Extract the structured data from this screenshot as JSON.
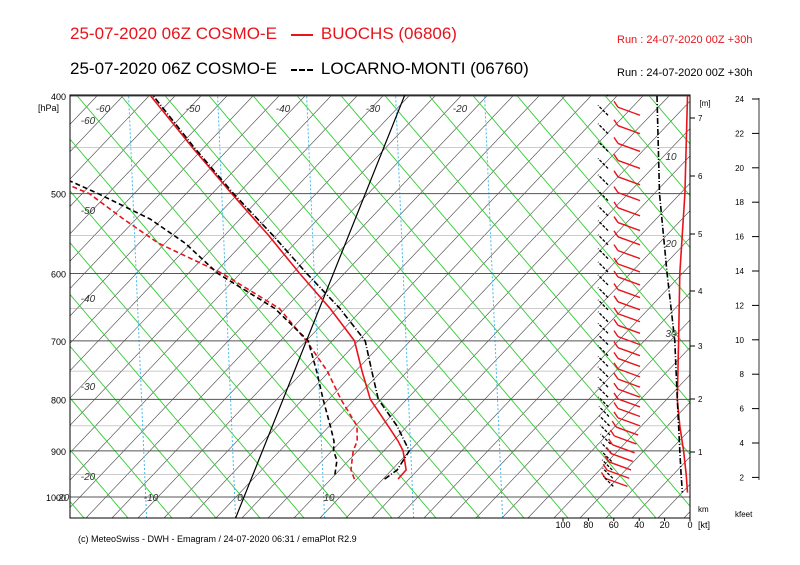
{
  "header": {
    "line1_prefix": "25-07-2020 06Z COSMO-E",
    "line1_station": "BUOCHS (06806)",
    "line1_run": "Run : 24-07-2020 00Z +30h",
    "line2_prefix": "25-07-2020 06Z COSMO-E",
    "line2_station": "LOCARNO-MONTI (06760)",
    "line2_run": "Run : 24-07-2020 00Z +30h"
  },
  "credit": "(c) MeteoSwiss - DWH - Emagram / 24-07-2020  06:31 / emaPlot R2.9",
  "colors": {
    "red": "#e8141b",
    "black": "#000000",
    "green": "#33cc33",
    "cyan": "#44bbee",
    "grid": "#555555"
  },
  "chart_data": {
    "type": "line",
    "ylabel": "[hPa]",
    "ylim": [
      1000,
      400
    ],
    "pressure_ticks": [
      400,
      500,
      600,
      700,
      800,
      900,
      1000
    ],
    "temp_ticks": [
      10,
      0,
      -10,
      -20,
      -30
    ],
    "temp_labels_top": [
      -60,
      -50,
      -40,
      -30,
      -20
    ],
    "temp_labels_left": [
      -60,
      -50,
      -40,
      -30,
      -20
    ],
    "wind_axis": {
      "ticks": [
        100,
        80,
        60,
        40,
        20,
        0
      ],
      "unit": "[kt]"
    },
    "km_axis": {
      "label": "[m]",
      "unit": "km",
      "ticks": [
        7,
        6,
        5,
        4,
        3,
        2,
        1
      ]
    },
    "kfeet_axis": {
      "unit": "kfeet",
      "ticks": [
        24,
        22,
        20,
        18,
        16,
        14,
        12,
        10,
        8,
        6,
        4,
        2
      ]
    },
    "side_labels": [
      "10",
      "20",
      "30"
    ],
    "series": [
      {
        "name": "BUOCHS (06806)",
        "kind": "temperature",
        "p": [
          960,
          940,
          900,
          880,
          850,
          800,
          750,
          700,
          650,
          600,
          550,
          500,
          450,
          400
        ],
        "t": [
          16.5,
          17.0,
          15.8,
          14.8,
          13.0,
          9.8,
          7.6,
          5.4,
          1.2,
          -3.8,
          -9.0,
          -15.0,
          -21.5,
          -28.5
        ]
      },
      {
        "name": "BUOCHS (06806)",
        "kind": "dewpoint",
        "p": [
          960,
          940,
          920,
          900,
          880,
          850,
          800,
          750,
          700,
          650,
          600,
          560,
          530,
          500,
          470,
          450,
          400
        ],
        "t": [
          11.6,
          10.8,
          10.5,
          10.2,
          10.2,
          9.5,
          6.5,
          3.7,
          0.0,
          -4.5,
          -12.5,
          -21.0,
          -26.0,
          -31.0,
          -39.5,
          -42.0,
          -47.0
        ]
      },
      {
        "name": "LOCARNO-MONTI (06760)",
        "kind": "temperature",
        "p": [
          960,
          940,
          900,
          850,
          800,
          750,
          700,
          650,
          600,
          550,
          500,
          450,
          400
        ],
        "t": [
          15.0,
          16.0,
          16.5,
          14.0,
          10.7,
          8.7,
          6.6,
          2.3,
          -3.0,
          -8.5,
          -14.8,
          -21.3,
          -28.2
        ]
      },
      {
        "name": "LOCARNO-MONTI (06760)",
        "kind": "dewpoint",
        "p": [
          950,
          920,
          900,
          880,
          850,
          800,
          750,
          700,
          650,
          600,
          560,
          530,
          500,
          470,
          450,
          400
        ],
        "t": [
          9.2,
          8.8,
          8.0,
          7.6,
          6.5,
          4.5,
          2.5,
          0.2,
          -5.0,
          -13.0,
          -18.0,
          -23.0,
          -30.0,
          -38.0,
          -41.0,
          -44.0
        ]
      },
      {
        "name": "BUOCHS (06806)",
        "kind": "wind_speed_kt",
        "p": [
          400,
          500,
          600,
          700,
          800,
          850,
          900,
          950,
          990
        ],
        "v": [
          2,
          4,
          8,
          9,
          10,
          8,
          5,
          3,
          2
        ]
      },
      {
        "name": "LOCARNO-MONTI (06760)",
        "kind": "wind_speed_kt",
        "p": [
          400,
          500,
          600,
          700,
          800,
          850,
          900,
          950,
          990
        ],
        "v": [
          26,
          24,
          18,
          12,
          10,
          9,
          8,
          7,
          6
        ]
      }
    ]
  }
}
